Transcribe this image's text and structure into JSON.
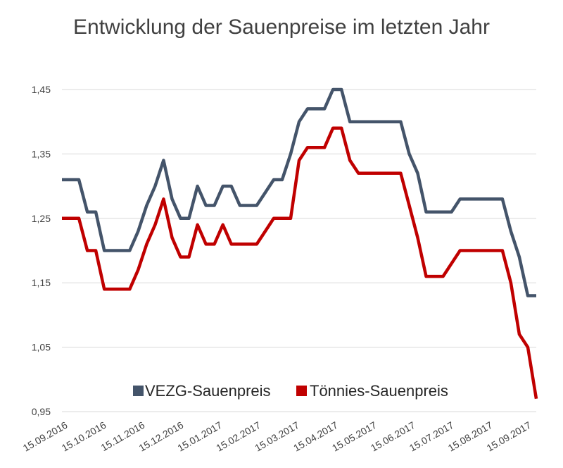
{
  "chart_data": {
    "type": "line",
    "title": "Entwicklung der Sauenpreise im letzten Jahr",
    "ylim": [
      0.95,
      1.45
    ],
    "yticks": [
      "1,45",
      "1,35",
      "1,25",
      "1,15",
      "1,05",
      "0,95"
    ],
    "ytick_values": [
      1.45,
      1.35,
      1.25,
      1.15,
      1.05,
      0.95
    ],
    "xticks": [
      "15.09.2016",
      "15.10.2016",
      "15.11.2016",
      "15.12.2016",
      "15.01.2017",
      "15.02.2017",
      "15.03.2017",
      "15.04.2017",
      "15.05.2017",
      "15.06.2017",
      "15.07.2017",
      "15.08.2017",
      "15.09.2017"
    ],
    "grid": true,
    "legend_position": "bottom",
    "x_week_index": [
      0,
      1,
      2,
      3,
      4,
      5,
      6,
      7,
      8,
      9,
      10,
      11,
      12,
      13,
      14,
      15,
      16,
      17,
      18,
      19,
      20,
      21,
      22,
      23,
      24,
      25,
      26,
      27,
      28,
      29,
      30,
      31,
      32,
      33,
      34,
      35,
      36,
      37,
      38,
      39,
      40,
      41,
      42,
      43,
      44,
      45,
      46,
      47,
      48,
      49,
      50,
      51,
      52,
      53,
      54,
      55,
      56
    ],
    "series": [
      {
        "name": "VEZG-Sauenpreis",
        "color": "#44546a",
        "values": [
          1.31,
          1.31,
          1.31,
          1.26,
          1.26,
          1.2,
          1.2,
          1.2,
          1.2,
          1.23,
          1.27,
          1.3,
          1.34,
          1.28,
          1.25,
          1.25,
          1.3,
          1.27,
          1.27,
          1.3,
          1.3,
          1.27,
          1.27,
          1.27,
          1.29,
          1.31,
          1.31,
          1.35,
          1.4,
          1.42,
          1.42,
          1.42,
          1.45,
          1.45,
          1.4,
          1.4,
          1.4,
          1.4,
          1.4,
          1.4,
          1.4,
          1.35,
          1.32,
          1.26,
          1.26,
          1.26,
          1.26,
          1.28,
          1.28,
          1.28,
          1.28,
          1.28,
          1.28,
          1.23,
          1.19,
          1.13,
          1.13
        ]
      },
      {
        "name": "Tönnies-Sauenpreis",
        "color": "#c00000",
        "values": [
          1.25,
          1.25,
          1.25,
          1.2,
          1.2,
          1.14,
          1.14,
          1.14,
          1.14,
          1.17,
          1.21,
          1.24,
          1.28,
          1.22,
          1.19,
          1.19,
          1.24,
          1.21,
          1.21,
          1.24,
          1.21,
          1.21,
          1.21,
          1.21,
          1.23,
          1.25,
          1.25,
          1.25,
          1.34,
          1.36,
          1.36,
          1.36,
          1.39,
          1.39,
          1.34,
          1.32,
          1.32,
          1.32,
          1.32,
          1.32,
          1.32,
          1.27,
          1.22,
          1.16,
          1.16,
          1.16,
          1.18,
          1.2,
          1.2,
          1.2,
          1.2,
          1.2,
          1.2,
          1.15,
          1.07,
          1.05,
          0.97
        ]
      }
    ]
  }
}
